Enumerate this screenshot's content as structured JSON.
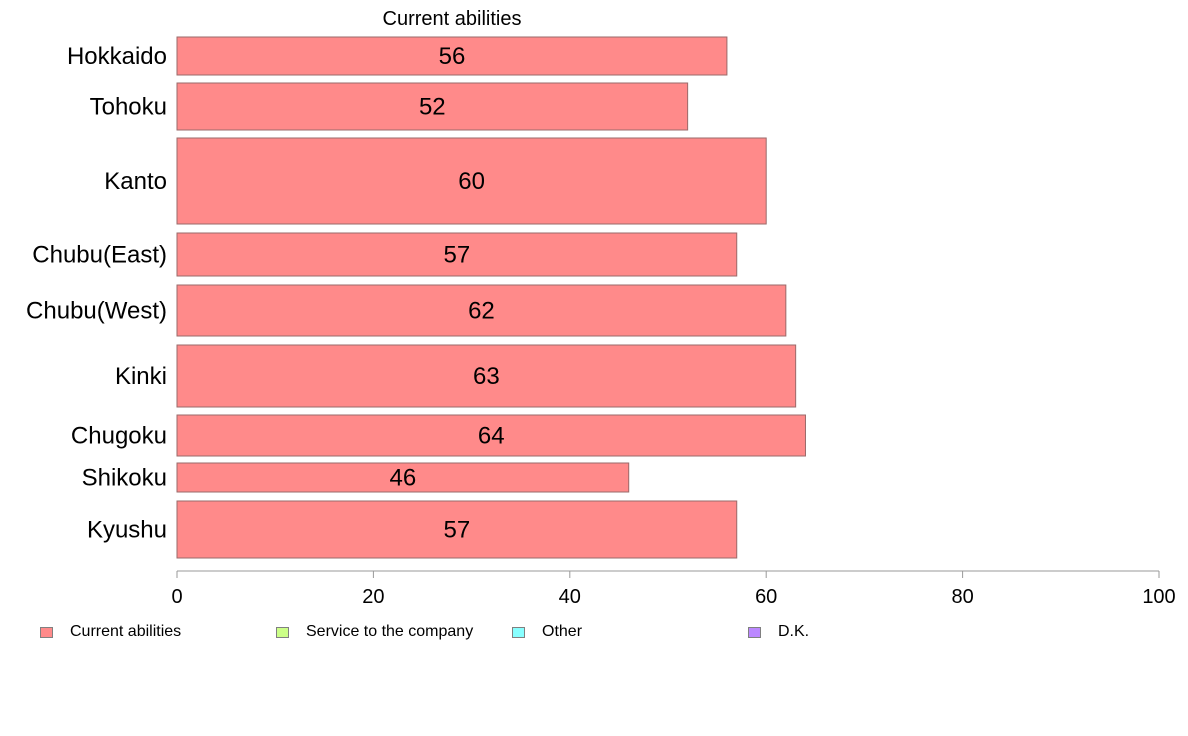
{
  "chart_data": {
    "type": "bar",
    "orientation": "horizontal",
    "title": "Current abilities",
    "categories": [
      "Hokkaido",
      "Tohoku",
      "Kanto",
      "Chubu(East)",
      "Chubu(West)",
      "Kinki",
      "Chugoku",
      "Shikoku",
      "Kyushu"
    ],
    "series": [
      {
        "name": "Current abilities",
        "color": "#ff8a8a",
        "values": [
          56,
          52,
          60,
          57,
          62,
          63,
          64,
          46,
          57
        ],
        "labels": [
          "56",
          "52",
          "60",
          "57",
          "62",
          "63",
          "64",
          "46",
          "57"
        ]
      }
    ],
    "xlim": [
      0,
      100
    ],
    "xticks": [
      "0",
      "20",
      "40",
      "60",
      "80",
      "100"
    ],
    "grid": false,
    "legend": {
      "placement": "bottom",
      "entries": [
        {
          "name": "Current abilities",
          "color": "#ff8a8a"
        },
        {
          "name": "Service to the company",
          "color": "#ccff88"
        },
        {
          "name": "Other",
          "color": "#88ffff"
        },
        {
          "name": "D.K.",
          "color": "#bb88ff"
        }
      ]
    }
  }
}
